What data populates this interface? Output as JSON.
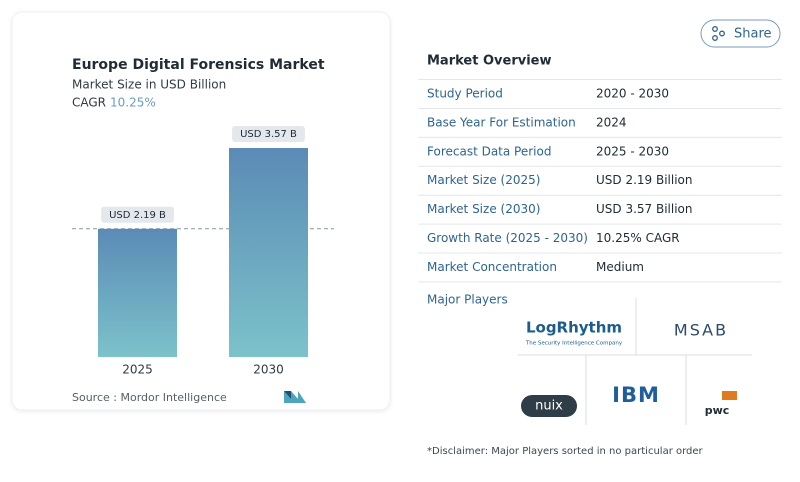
{
  "share": "Share",
  "chart_data": {
    "type": "bar",
    "title": "Europe Digital Forensics Market",
    "subtitle": "Market Size in USD Billion",
    "cagr_label": "CAGR",
    "cagr": "10.25%",
    "categories": [
      "2025",
      "2030"
    ],
    "values": [
      2.19,
      3.57
    ],
    "value_labels": [
      "USD 2.19 B",
      "USD 3.57 B"
    ],
    "color": [
      "#5b8bb6",
      "#7cc2ca"
    ],
    "source": "Source :  Mordor Intelligence"
  },
  "overview": {
    "title": "Market Overview",
    "rows": [
      [
        "Study Period",
        "2020 - 2030"
      ],
      [
        "Base Year For Estimation",
        "2024"
      ],
      [
        "Forecast Data Period",
        "2025 - 2030"
      ],
      [
        "Market Size (2025)",
        "USD 2.19 Billion"
      ],
      [
        "Market Size (2030)",
        "USD 3.57 Billion"
      ],
      [
        "Growth Rate (2025 - 2030)",
        "10.25% CAGR"
      ],
      [
        "Market Concentration",
        "Medium"
      ]
    ]
  },
  "players": {
    "title": "Major Players",
    "logos": [
      "LogRhythm",
      "The Security Intelligence Company",
      "MSAB",
      "nuix",
      "IBM",
      "pwc"
    ]
  },
  "disclaimer": "*Disclaimer: Major Players sorted in no particular order"
}
